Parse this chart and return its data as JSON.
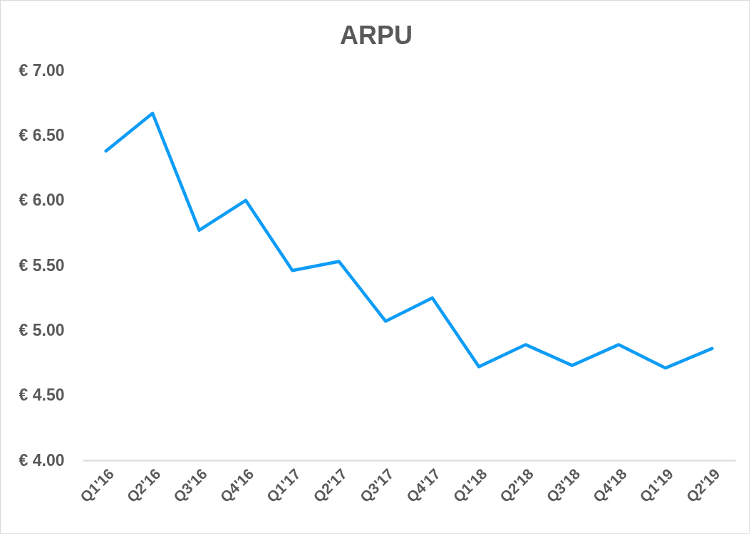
{
  "chart_data": {
    "type": "line",
    "title": "ARPU",
    "categories": [
      "Q1'16",
      "Q2'16",
      "Q3'16",
      "Q4'16",
      "Q1'17",
      "Q2'17",
      "Q3'17",
      "Q4'17",
      "Q1'18",
      "Q2'18",
      "Q3'18",
      "Q4'18",
      "Q1'19",
      "Q2'19"
    ],
    "series": [
      {
        "color": "#0d9cf6",
        "values": [
          6.38,
          6.67,
          5.77,
          6.0,
          5.46,
          5.53,
          5.07,
          5.25,
          4.72,
          4.89,
          4.73,
          4.89,
          4.71,
          4.86
        ]
      }
    ],
    "ylim": [
      4,
      7
    ],
    "yticks": [
      {
        "value": 4,
        "label": "€ 4.00"
      },
      {
        "value": 4.5,
        "label": "€ 4.50"
      },
      {
        "value": 5,
        "label": "€ 5.00"
      },
      {
        "value": 5.5,
        "label": "€ 5.50"
      },
      {
        "value": 6,
        "label": "€ 6.00"
      },
      {
        "value": 6.5,
        "label": "€ 6.50"
      },
      {
        "value": 7,
        "label": "€ 7.00"
      }
    ],
    "line_style": "solid"
  }
}
